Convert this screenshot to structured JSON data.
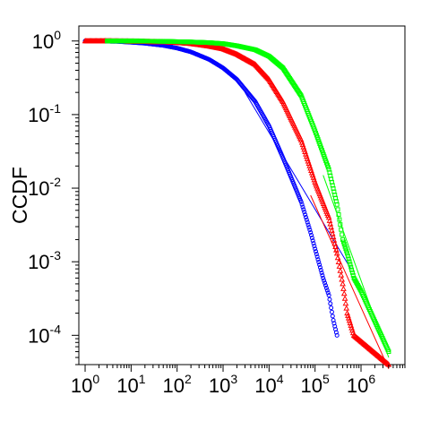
{
  "chart_data": {
    "type": "scatter",
    "title": "",
    "xlabel": "",
    "ylabel": "CCDF",
    "xscale": "log",
    "yscale": "log",
    "xlim": [
      0.73,
      9000000
    ],
    "ylim": [
      4e-05,
      1.6
    ],
    "grid": false,
    "legend": "none",
    "x_ticks": [
      {
        "base": "10",
        "exp": "0",
        "value": 1
      },
      {
        "base": "10",
        "exp": "1",
        "value": 10
      },
      {
        "base": "10",
        "exp": "2",
        "value": 100
      },
      {
        "base": "10",
        "exp": "3",
        "value": 1000
      },
      {
        "base": "10",
        "exp": "4",
        "value": 10000
      },
      {
        "base": "10",
        "exp": "5",
        "value": 100000
      },
      {
        "base": "10",
        "exp": "6",
        "value": 1000000
      }
    ],
    "y_ticks": [
      {
        "base": "10",
        "exp": "0",
        "value": 1
      },
      {
        "base": "10",
        "exp": "-1",
        "value": 0.1
      },
      {
        "base": "10",
        "exp": "-2",
        "value": 0.01
      },
      {
        "base": "10",
        "exp": "-3",
        "value": 0.001
      },
      {
        "base": "10",
        "exp": "-4",
        "value": 0.0001
      }
    ],
    "series": [
      {
        "color": "#0000ff",
        "marker": "circle",
        "points": [
          [
            1,
            1
          ],
          [
            2,
            0.995
          ],
          [
            3,
            0.99
          ],
          [
            5,
            0.985
          ],
          [
            10,
            0.96
          ],
          [
            20,
            0.93
          ],
          [
            50,
            0.87
          ],
          [
            100,
            0.8
          ],
          [
            200,
            0.71
          ],
          [
            500,
            0.56
          ],
          [
            1000,
            0.43
          ],
          [
            2000,
            0.3
          ],
          [
            5000,
            0.15
          ],
          [
            10000,
            0.07
          ],
          [
            20000,
            0.026
          ],
          [
            50000,
            0.0065
          ],
          [
            80000,
            0.0025
          ],
          [
            100000,
            0.0015
          ],
          [
            150000,
            0.0006
          ],
          [
            200000,
            0.00035
          ],
          [
            250000,
            0.00016
          ],
          [
            300000,
            0.0001
          ]
        ],
        "fit": [
          [
            3000,
            0.2
          ],
          [
            600000,
            0.0008
          ]
        ]
      },
      {
        "color": "#ff0000",
        "marker": "triangle",
        "points": [
          [
            1,
            1
          ],
          [
            2,
            1
          ],
          [
            3,
            1
          ],
          [
            5,
            0.995
          ],
          [
            10,
            0.99
          ],
          [
            20,
            0.98
          ],
          [
            50,
            0.97
          ],
          [
            100,
            0.95
          ],
          [
            200,
            0.92
          ],
          [
            500,
            0.85
          ],
          [
            1000,
            0.78
          ],
          [
            2000,
            0.66
          ],
          [
            5000,
            0.48
          ],
          [
            10000,
            0.3
          ],
          [
            20000,
            0.15
          ],
          [
            50000,
            0.045
          ],
          [
            100000,
            0.012
          ],
          [
            200000,
            0.004
          ],
          [
            300000,
            0.0013
          ],
          [
            400000,
            0.0005
          ],
          [
            500000,
            0.0002
          ],
          [
            700000,
            0.0001
          ],
          [
            4000000,
            4e-05
          ]
        ],
        "fit": [
          [
            80000,
            0.008
          ],
          [
            4000000,
            3.5e-05
          ]
        ]
      },
      {
        "color": "#00ff00",
        "marker": "square",
        "points": [
          [
            3,
            1
          ],
          [
            5,
            1
          ],
          [
            10,
            1
          ],
          [
            20,
            0.995
          ],
          [
            50,
            0.99
          ],
          [
            100,
            0.98
          ],
          [
            200,
            0.97
          ],
          [
            500,
            0.95
          ],
          [
            1000,
            0.92
          ],
          [
            2000,
            0.86
          ],
          [
            5000,
            0.76
          ],
          [
            10000,
            0.62
          ],
          [
            20000,
            0.43
          ],
          [
            50000,
            0.18
          ],
          [
            100000,
            0.06
          ],
          [
            200000,
            0.018
          ],
          [
            300000,
            0.006
          ],
          [
            400000,
            0.002
          ],
          [
            500000,
            0.0013
          ],
          [
            700000,
            0.0006
          ],
          [
            1000000,
            0.0004
          ],
          [
            4000000,
            6e-05
          ]
        ],
        "fit": [
          [
            150000,
            0.015
          ],
          [
            4000000,
            5e-05
          ]
        ]
      }
    ]
  }
}
